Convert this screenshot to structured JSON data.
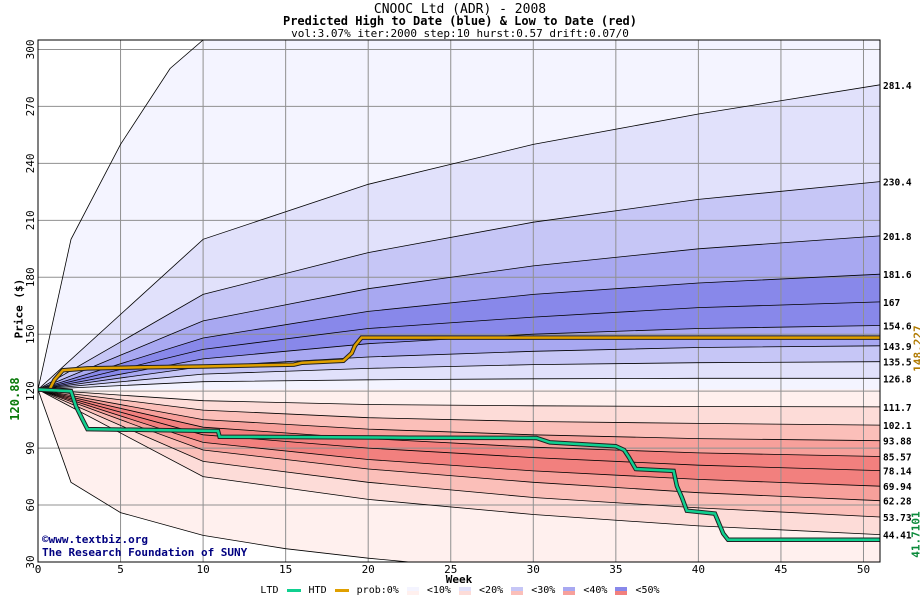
{
  "header": {
    "title": "CNOOC Ltd (ADR) - 2008",
    "subtitle": "Predicted High to Date (blue) &  Low to Date (red)",
    "params": "vol:3.07% iter:2000 step:10 hurst:0.57 drift:0.07/0"
  },
  "credits": {
    "line1": "©www.textbiz.org",
    "line2": "The Research Foundation of SUNY"
  },
  "colors": {
    "htd_line": "#e0a000",
    "ltd_line": "#10d090",
    "blue_bands": [
      "#f4f4ff",
      "#e1e1fb",
      "#c6c6f6",
      "#a8a8f1",
      "#8888ea"
    ],
    "red_bands": [
      "#fff0ee",
      "#fddcd8",
      "#fbbfb9",
      "#f7a09b",
      "#f2807e"
    ],
    "start_label": "#0a7a0a",
    "htd_label": "#b07a00",
    "ltd_label": "#0a8a3a"
  },
  "legend": {
    "ltd": "LTD",
    "htd": "HTD",
    "prob": "prob:0%",
    "items": [
      "<10%",
      "<20%",
      "<30%",
      "<40%",
      "<50%"
    ]
  },
  "chart_data": {
    "type": "line",
    "title": "CNOOC Ltd (ADR) - 2008",
    "xlabel": "Week",
    "ylabel": "Price ($)",
    "xlim": [
      0,
      51
    ],
    "ylim": [
      30,
      305
    ],
    "x_ticks": [
      0,
      5,
      10,
      15,
      20,
      25,
      30,
      35,
      40,
      45,
      50
    ],
    "y_ticks": [
      30,
      60,
      90,
      120,
      150,
      180,
      210,
      240,
      270,
      300
    ],
    "grid": true,
    "start_price": "120.88",
    "quantiles_upper": [
      {
        "label": "281.4",
        "end": 281.4,
        "w10": 200,
        "w20": 229,
        "w30": 250,
        "w40": 266
      },
      {
        "label": "230.4",
        "end": 230.4,
        "w10": 171,
        "w20": 193,
        "w30": 209,
        "w40": 221
      },
      {
        "label": "201.8",
        "end": 201.8,
        "w10": 157,
        "w20": 174,
        "w30": 186,
        "w40": 195
      },
      {
        "label": "181.6",
        "end": 181.6,
        "w10": 148,
        "w20": 162,
        "w30": 171,
        "w40": 177
      },
      {
        "label": "167",
        "end": 167.0,
        "w10": 142,
        "w20": 153,
        "w30": 159,
        "w40": 164
      },
      {
        "label": "154.6",
        "end": 154.6,
        "w10": 137,
        "w20": 145,
        "w30": 150,
        "w40": 153
      },
      {
        "label": "143.9",
        "end": 143.9,
        "w10": 133,
        "w20": 138,
        "w30": 141,
        "w40": 143
      },
      {
        "label": "135.5",
        "end": 135.5,
        "w10": 129,
        "w20": 132,
        "w30": 134,
        "w40": 135
      },
      {
        "label": "126.8",
        "end": 126.8,
        "w10": 125,
        "w20": 126,
        "w30": 126.5,
        "w40": 126.8
      }
    ],
    "quantiles_lower": [
      {
        "label": "111.7",
        "end": 111.7,
        "w10": 115,
        "w20": 113,
        "w30": 112.3,
        "w40": 111.9
      },
      {
        "label": "102.1",
        "end": 102.1,
        "w10": 110,
        "w20": 106,
        "w30": 104,
        "w40": 103
      },
      {
        "label": "93.88",
        "end": 93.88,
        "w10": 105,
        "w20": 100,
        "w30": 97,
        "w40": 95
      },
      {
        "label": "85.57",
        "end": 85.57,
        "w10": 101,
        "w20": 95,
        "w30": 90.5,
        "w40": 87.5
      },
      {
        "label": "78.14",
        "end": 78.14,
        "w10": 97,
        "w20": 90,
        "w30": 85,
        "w40": 81
      },
      {
        "label": "69.94",
        "end": 69.94,
        "w10": 93,
        "w20": 84,
        "w30": 78,
        "w40": 73.5
      },
      {
        "label": "62.28",
        "end": 62.28,
        "w10": 89,
        "w20": 79,
        "w30": 72,
        "w40": 66.5
      },
      {
        "label": "53.73",
        "end": 53.73,
        "w10": 83,
        "w20": 72,
        "w30": 64,
        "w40": 58.5
      },
      {
        "label": "44.41",
        "end": 44.41,
        "w10": 75,
        "w20": 63,
        "w30": 55,
        "w40": 49
      }
    ],
    "outer_upper": [
      [
        0,
        120.88
      ],
      [
        2,
        200
      ],
      [
        5,
        250
      ],
      [
        8,
        290
      ],
      [
        10,
        305
      ]
    ],
    "outer_lower": [
      [
        0,
        120.88
      ],
      [
        2,
        72
      ],
      [
        5,
        56
      ],
      [
        10,
        44
      ],
      [
        15,
        37
      ],
      [
        20,
        32
      ],
      [
        22.5,
        30
      ]
    ],
    "htd": {
      "label": "148.227",
      "end": 148.227,
      "points": [
        [
          0,
          120.88
        ],
        [
          0.7,
          121
        ],
        [
          1,
          126
        ],
        [
          1.5,
          131
        ],
        [
          3,
          132
        ],
        [
          6,
          132.5
        ],
        [
          10,
          133
        ],
        [
          15.5,
          134
        ],
        [
          16,
          135
        ],
        [
          18.5,
          136
        ],
        [
          19,
          140
        ],
        [
          19.2,
          144
        ],
        [
          19.6,
          148.2
        ],
        [
          51,
          148.2
        ]
      ]
    },
    "ltd": {
      "label": "41.7101",
      "end": 41.7101,
      "points": [
        [
          0,
          120.88
        ],
        [
          2,
          120
        ],
        [
          2.3,
          112
        ],
        [
          2.7,
          105
        ],
        [
          3,
          100
        ],
        [
          10.9,
          99
        ],
        [
          11,
          96
        ],
        [
          22.5,
          95.5
        ],
        [
          30.2,
          95.3
        ],
        [
          31,
          93
        ],
        [
          35,
          91
        ],
        [
          35.5,
          89
        ],
        [
          35.8,
          85
        ],
        [
          36.2,
          79
        ],
        [
          38.5,
          78
        ],
        [
          38.7,
          70
        ],
        [
          39,
          64
        ],
        [
          39.3,
          57
        ],
        [
          41,
          55.5
        ],
        [
          41.5,
          45
        ],
        [
          41.8,
          41.7
        ],
        [
          51,
          41.7
        ]
      ]
    }
  }
}
